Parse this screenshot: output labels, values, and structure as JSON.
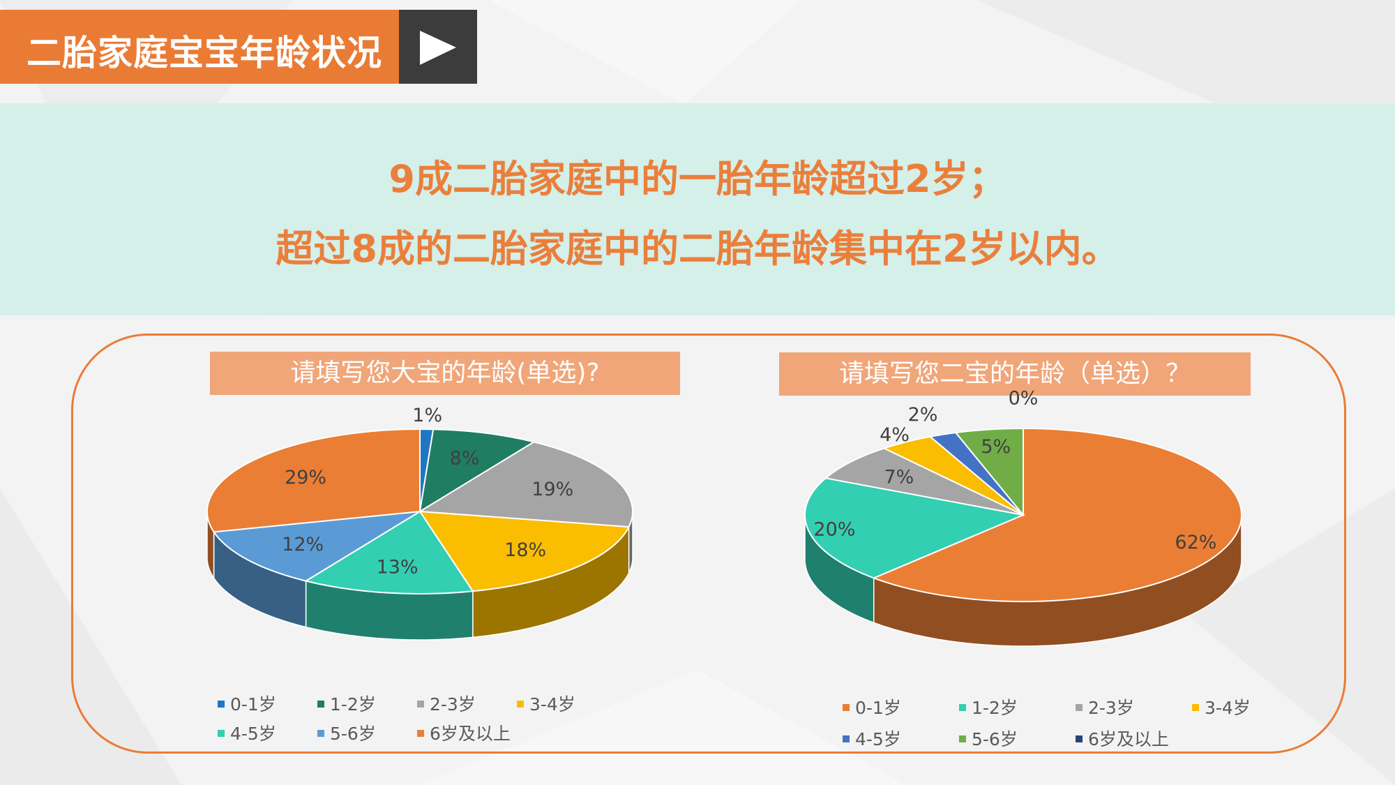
{
  "header": {
    "title": "二胎家庭宝宝年龄状况"
  },
  "banner": {
    "line1": "9成二胎家庭中的一胎年龄超过2岁；",
    "line2": "超过8成的二胎家庭中的二胎年龄集中在2岁以内。"
  },
  "colors": {
    "accent": "#ea7b35",
    "dark": "#3c3c3c",
    "banner_bg": "#d4efe9",
    "title_bg": "#f0a679"
  },
  "chart_data": [
    {
      "type": "pie",
      "title": "请填写您大宝的年龄(单选)?",
      "categories": [
        "0-1岁",
        "1-2岁",
        "2-3岁",
        "3-4岁",
        "4-5岁",
        "5-6岁",
        "6岁及以上"
      ],
      "values": [
        1,
        8,
        19,
        18,
        13,
        12,
        29
      ],
      "value_labels": [
        "1%",
        "8%",
        "19%",
        "18%",
        "13%",
        "12%",
        "29%"
      ],
      "colors": [
        "#1f77c4",
        "#1f7d62",
        "#a5a5a5",
        "#fbbd00",
        "#32cfb2",
        "#5b9bd5",
        "#ea7e34"
      ],
      "legend_position": "bottom"
    },
    {
      "type": "pie",
      "title": "请填写您二宝的年龄（单选）？",
      "categories": [
        "0-1岁",
        "1-2岁",
        "2-3岁",
        "3-4岁",
        "4-5岁",
        "5-6岁",
        "6岁及以上"
      ],
      "values": [
        62,
        20,
        7,
        4,
        2,
        5,
        0
      ],
      "value_labels": [
        "62%",
        "20%",
        "7%",
        "4%",
        "2%",
        "5%",
        "0%"
      ],
      "colors": [
        "#ea7e34",
        "#32cfb2",
        "#a5a5a5",
        "#fbbd00",
        "#4472c4",
        "#70ad47",
        "#264478"
      ],
      "legend_position": "bottom"
    }
  ]
}
